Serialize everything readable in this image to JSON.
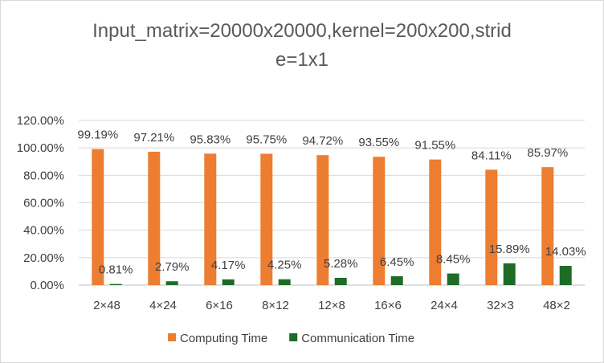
{
  "chart_data": {
    "type": "bar",
    "title_lines": [
      "Input_matrix=20000x20000,kernel=200x200,strid",
      "e=1x1"
    ],
    "xlabel": "",
    "ylabel": "",
    "categories": [
      "2×48",
      "4×24",
      "6×16",
      "8×12",
      "12×8",
      "16×6",
      "24×4",
      "32×3",
      "48×2"
    ],
    "ylim": [
      0,
      120
    ],
    "y_ticks": [
      "0.00%",
      "20.00%",
      "40.00%",
      "60.00%",
      "80.00%",
      "100.00%",
      "120.00%"
    ],
    "grid": true,
    "legend_position": "bottom",
    "series": [
      {
        "name": "Computing Time",
        "color": "#ed7d31",
        "values": [
          99.19,
          97.21,
          95.83,
          95.75,
          94.72,
          93.55,
          91.55,
          84.11,
          85.97
        ],
        "labels": [
          "99.19%",
          "97.21%",
          "95.83%",
          "95.75%",
          "94.72%",
          "93.55%",
          "91.55%",
          "84.11%",
          "85.97%"
        ]
      },
      {
        "name": "Communication Time",
        "color": "#1e6b28",
        "values": [
          0.81,
          2.79,
          4.17,
          4.25,
          5.28,
          6.45,
          8.45,
          15.89,
          14.03
        ],
        "labels": [
          "0.81%",
          "2.79%",
          "4.17%",
          "4.25%",
          "5.28%",
          "6.45%",
          "8.45%",
          "15.89%",
          "14.03%"
        ]
      }
    ]
  }
}
